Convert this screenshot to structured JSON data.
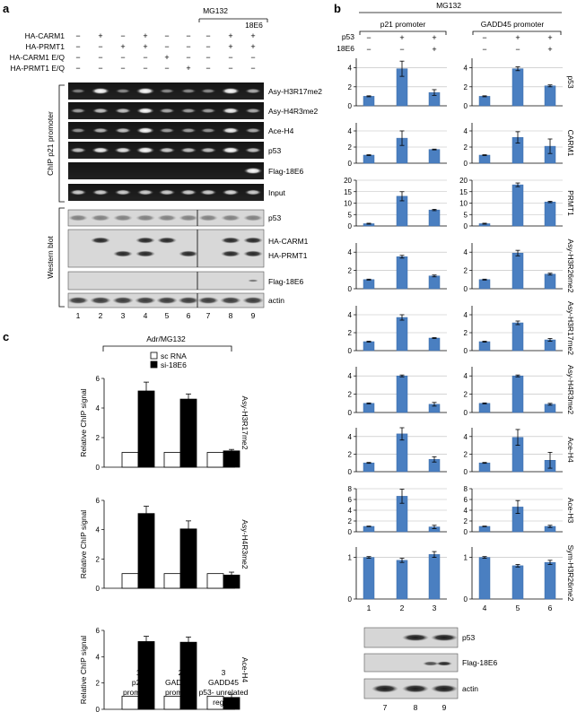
{
  "panel_a": {
    "label": "a",
    "mg132": "MG132",
    "e6_header": "18E6",
    "conditions": [
      {
        "name": "HA-CARM1",
        "values": [
          "−",
          "+",
          "−",
          "+",
          "−",
          "−",
          "−",
          "+",
          "+"
        ]
      },
      {
        "name": "HA-PRMT1",
        "values": [
          "−",
          "−",
          "+",
          "+",
          "−",
          "−",
          "−",
          "+",
          "+"
        ]
      },
      {
        "name": "HA-CARM1 E/Q",
        "values": [
          "−",
          "−",
          "−",
          "−",
          "+",
          "−",
          "−",
          "−",
          "−"
        ]
      },
      {
        "name": "HA-PRMT1 E/Q",
        "values": [
          "−",
          "−",
          "−",
          "−",
          "−",
          "+",
          "−",
          "−",
          "−"
        ]
      }
    ],
    "chip_group": "ChIP p21 promoter",
    "western_group": "Western blot",
    "chip_rows": [
      "Asy-H3R17me2",
      "Asy-H4R3me2",
      "Ace-H4",
      "p53",
      "Flag-18E6",
      "Input"
    ],
    "western_rows": [
      "p53",
      "HA-CARM1",
      "HA-PRMT1",
      "Flag-18E6",
      "actin"
    ],
    "lanes": [
      "1",
      "2",
      "3",
      "4",
      "5",
      "6",
      "7",
      "8",
      "9"
    ]
  },
  "panel_b": {
    "label": "b",
    "mg132": "MG132",
    "p21_header": "p21 promoter",
    "gadd_header": "GADD45 promoter",
    "row_labels": [
      {
        "name": "p53",
        "p21": [
          "−",
          "+",
          "+"
        ],
        "gadd": [
          "−",
          "+",
          "+"
        ]
      },
      {
        "name": "18E6",
        "p21": [
          "−",
          "−",
          "+"
        ],
        "gadd": [
          "−",
          "−",
          "+"
        ]
      }
    ],
    "lanes_left": [
      "1",
      "2",
      "3"
    ],
    "lanes_right": [
      "4",
      "5",
      "6"
    ],
    "western_rows": [
      "p53",
      "Flag-18E6",
      "actin"
    ],
    "western_lanes": [
      "7",
      "8",
      "9"
    ]
  },
  "panel_c": {
    "label": "c",
    "header": "Adr/MG132",
    "legend": [
      "sc RNA",
      "si-18E6"
    ],
    "ylabel": "Relative ChIP signal",
    "xticks": [
      {
        "num": "1",
        "line1": "p21",
        "line2": "promoter",
        "line3": ""
      },
      {
        "num": "2",
        "line1": "GADD45",
        "line2": "promoter",
        "line3": ""
      },
      {
        "num": "3",
        "line1": "GADD45",
        "line2": "p53- unrelated",
        "line3": "region"
      }
    ]
  },
  "chart_data": [
    {
      "panel": "b",
      "type": "bar",
      "row": "p53",
      "categories": [
        "1",
        "2",
        "3"
      ],
      "values": [
        1,
        3.9,
        1.4
      ],
      "errors": [
        0.05,
        0.8,
        0.3
      ],
      "ylim": [
        0,
        5
      ],
      "yticks": [
        0,
        2,
        4
      ]
    },
    {
      "panel": "b",
      "type": "bar",
      "row": "p53",
      "categories": [
        "4",
        "5",
        "6"
      ],
      "values": [
        1,
        3.9,
        2.1
      ],
      "errors": [
        0.05,
        0.2,
        0.1
      ],
      "ylim": [
        0,
        5
      ],
      "yticks": [
        0,
        2,
        4
      ]
    },
    {
      "panel": "b",
      "type": "bar",
      "row": "CARM1",
      "categories": [
        "1",
        "2",
        "3"
      ],
      "values": [
        1,
        3.1,
        1.7
      ],
      "errors": [
        0.05,
        0.9,
        0.05
      ],
      "ylim": [
        0,
        5
      ],
      "yticks": [
        0,
        2,
        4
      ]
    },
    {
      "panel": "b",
      "type": "bar",
      "row": "CARM1",
      "categories": [
        "4",
        "5",
        "6"
      ],
      "values": [
        1,
        3.2,
        2.1
      ],
      "errors": [
        0.05,
        0.7,
        0.9
      ],
      "ylim": [
        0,
        5
      ],
      "yticks": [
        0,
        2,
        4
      ]
    },
    {
      "panel": "b",
      "type": "bar",
      "row": "PRMT1",
      "categories": [
        "1",
        "2",
        "3"
      ],
      "values": [
        1,
        13,
        7
      ],
      "errors": [
        0.2,
        2,
        0.3
      ],
      "ylim": [
        0,
        20
      ],
      "yticks": [
        0,
        5,
        10,
        15,
        20
      ]
    },
    {
      "panel": "b",
      "type": "bar",
      "row": "PRMT1",
      "categories": [
        "4",
        "5",
        "6"
      ],
      "values": [
        1,
        18,
        10.5
      ],
      "errors": [
        0.2,
        0.8,
        0.3
      ],
      "ylim": [
        0,
        20
      ],
      "yticks": [
        0,
        5,
        10,
        15,
        20
      ]
    },
    {
      "panel": "b",
      "type": "bar",
      "row": "Asy-H3R26me2",
      "categories": [
        "1",
        "2",
        "3"
      ],
      "values": [
        1,
        3.5,
        1.4
      ],
      "errors": [
        0.05,
        0.15,
        0.1
      ],
      "ylim": [
        0,
        5
      ],
      "yticks": [
        0,
        2,
        4
      ]
    },
    {
      "panel": "b",
      "type": "bar",
      "row": "Asy-H3R26me2",
      "categories": [
        "4",
        "5",
        "6"
      ],
      "values": [
        1,
        3.9,
        1.6
      ],
      "errors": [
        0.05,
        0.3,
        0.1
      ],
      "ylim": [
        0,
        5
      ],
      "yticks": [
        0,
        2,
        4
      ]
    },
    {
      "panel": "b",
      "type": "bar",
      "row": "Asy-H3R17me2",
      "categories": [
        "1",
        "2",
        "3"
      ],
      "values": [
        1,
        3.7,
        1.4
      ],
      "errors": [
        0.05,
        0.3,
        0.05
      ],
      "ylim": [
        0,
        5
      ],
      "yticks": [
        0,
        2,
        4
      ]
    },
    {
      "panel": "b",
      "type": "bar",
      "row": "Asy-H3R17me2",
      "categories": [
        "4",
        "5",
        "6"
      ],
      "values": [
        1,
        3.1,
        1.2
      ],
      "errors": [
        0.05,
        0.2,
        0.15
      ],
      "ylim": [
        0,
        5
      ],
      "yticks": [
        0,
        2,
        4
      ]
    },
    {
      "panel": "b",
      "type": "bar",
      "row": "Asy-H4R3me2",
      "categories": [
        "1",
        "2",
        "3"
      ],
      "values": [
        1,
        4,
        0.9
      ],
      "errors": [
        0.05,
        0.1,
        0.2
      ],
      "ylim": [
        0,
        5
      ],
      "yticks": [
        0,
        2,
        4
      ]
    },
    {
      "panel": "b",
      "type": "bar",
      "row": "Asy-H4R3me2",
      "categories": [
        "4",
        "5",
        "6"
      ],
      "values": [
        1,
        4,
        0.9
      ],
      "errors": [
        0.05,
        0.1,
        0.1
      ],
      "ylim": [
        0,
        5
      ],
      "yticks": [
        0,
        2,
        4
      ]
    },
    {
      "panel": "b",
      "type": "bar",
      "row": "Ace-H4",
      "categories": [
        "1",
        "2",
        "3"
      ],
      "values": [
        1,
        4.3,
        1.4
      ],
      "errors": [
        0.05,
        0.7,
        0.3
      ],
      "ylim": [
        0,
        5
      ],
      "yticks": [
        0,
        2,
        4
      ]
    },
    {
      "panel": "b",
      "type": "bar",
      "row": "Ace-H4",
      "categories": [
        "4",
        "5",
        "6"
      ],
      "values": [
        1,
        3.9,
        1.3
      ],
      "errors": [
        0.05,
        0.9,
        0.9
      ],
      "ylim": [
        0,
        5
      ],
      "yticks": [
        0,
        2,
        4
      ]
    },
    {
      "panel": "b",
      "type": "bar",
      "row": "Ace-H3",
      "categories": [
        "1",
        "2",
        "3"
      ],
      "values": [
        1,
        6.6,
        0.9
      ],
      "errors": [
        0.05,
        1.3,
        0.3
      ],
      "ylim": [
        0,
        8
      ],
      "yticks": [
        0,
        2,
        4,
        6,
        8
      ]
    },
    {
      "panel": "b",
      "type": "bar",
      "row": "Ace-H3",
      "categories": [
        "4",
        "5",
        "6"
      ],
      "values": [
        1,
        4.6,
        1
      ],
      "errors": [
        0.05,
        1.2,
        0.2
      ],
      "ylim": [
        0,
        8
      ],
      "yticks": [
        0,
        2,
        4,
        6,
        8
      ]
    },
    {
      "panel": "b",
      "type": "bar",
      "row": "Sym-H3R26me2",
      "categories": [
        "1",
        "2",
        "3"
      ],
      "values": [
        1,
        0.93,
        1.07
      ],
      "errors": [
        0.02,
        0.05,
        0.07
      ],
      "ylim": [
        0,
        1.25
      ],
      "yticks": [
        0,
        1
      ]
    },
    {
      "panel": "b",
      "type": "bar",
      "row": "Sym-H3R26me2",
      "categories": [
        "4",
        "5",
        "6"
      ],
      "values": [
        1,
        0.8,
        0.88
      ],
      "errors": [
        0.02,
        0.03,
        0.05
      ],
      "ylim": [
        0,
        1.25
      ],
      "yticks": [
        0,
        1
      ]
    },
    {
      "panel": "c",
      "type": "bar",
      "row": "Asy-H3R17me2",
      "categories": [
        "1",
        "2",
        "3"
      ],
      "series": [
        {
          "name": "sc RNA",
          "values": [
            1,
            1,
            1
          ],
          "errors": [
            0,
            0,
            0
          ]
        },
        {
          "name": "si-18E6",
          "values": [
            5.15,
            4.6,
            1.1
          ],
          "errors": [
            0.6,
            0.35,
            0.1
          ]
        }
      ],
      "ylim": [
        0,
        6
      ],
      "yticks": [
        0,
        2,
        4,
        6
      ]
    },
    {
      "panel": "c",
      "type": "bar",
      "row": "Asy-H4R3me2",
      "categories": [
        "1",
        "2",
        "3"
      ],
      "series": [
        {
          "name": "sc RNA",
          "values": [
            1,
            1,
            1
          ],
          "errors": [
            0,
            0,
            0
          ]
        },
        {
          "name": "si-18E6",
          "values": [
            5.1,
            4.05,
            0.9
          ],
          "errors": [
            0.5,
            0.55,
            0.2
          ]
        }
      ],
      "ylim": [
        0,
        6
      ],
      "yticks": [
        0,
        2,
        4,
        6
      ]
    },
    {
      "panel": "c",
      "type": "bar",
      "row": "Ace-H4",
      "categories": [
        "1",
        "2",
        "3"
      ],
      "series": [
        {
          "name": "sc RNA",
          "values": [
            1,
            1,
            1
          ],
          "errors": [
            0,
            0,
            0
          ]
        },
        {
          "name": "si-18E6",
          "values": [
            5.15,
            5.1,
            0.9
          ],
          "errors": [
            0.4,
            0.4,
            0.25
          ]
        }
      ],
      "ylim": [
        0,
        6
      ],
      "yticks": [
        0,
        2,
        4,
        6
      ]
    }
  ]
}
